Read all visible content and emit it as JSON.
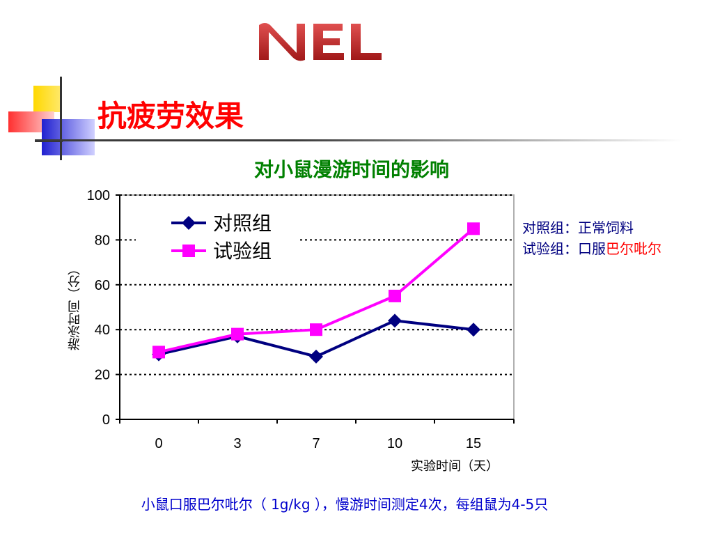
{
  "slide": {
    "logo_text": "NEL",
    "title": "抗疲劳效果",
    "footnote": "小鼠口服巴尔吡尔（ 1g/kg ），慢游时间测定4次，每组鼠为4-5只",
    "notes": {
      "line1_label": "对照组：",
      "line1_value": "正常饲料",
      "line2_label": "试验组：",
      "line2_value_a": "口服",
      "line2_value_b": "巴尔吡尔",
      "colors": {
        "text": "#000080",
        "highlight": "#ff0000"
      }
    }
  },
  "chart_data": {
    "type": "line",
    "title": "对小鼠漫游时间的影响",
    "xlabel": "实验时间（天）",
    "ylabel": "游泳时间（分）",
    "categories": [
      "0",
      "3",
      "7",
      "10",
      "15"
    ],
    "ylim": [
      0,
      100
    ],
    "yticks": [
      "0",
      "20",
      "40",
      "60",
      "80",
      "100"
    ],
    "grid": "horizontal dotted",
    "legend": "top-left",
    "series": [
      {
        "name": "对照组",
        "values": [
          29,
          37,
          28,
          44,
          40
        ],
        "color": "#000080",
        "marker": "diamond"
      },
      {
        "name": "试验组",
        "values": [
          30,
          38,
          40,
          55,
          85
        ],
        "color": "#ff00ff",
        "marker": "square"
      }
    ]
  }
}
